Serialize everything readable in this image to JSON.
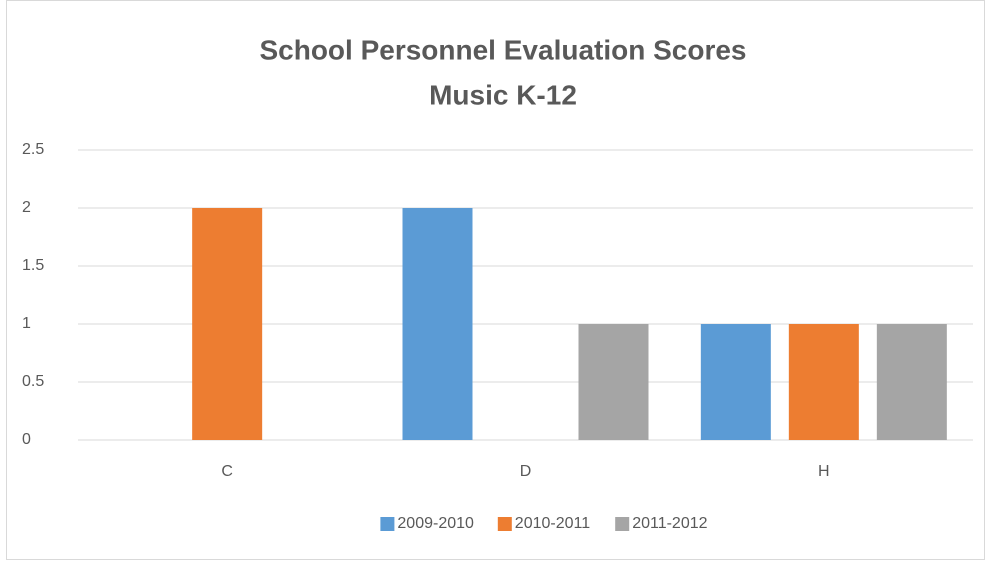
{
  "chart_data": {
    "type": "bar",
    "title": [
      "School Personnel Evaluation Scores",
      "Music K-12"
    ],
    "categories": [
      "C",
      "D",
      "H"
    ],
    "series": [
      {
        "name": "2009-2010",
        "color": "#5b9bd5",
        "values": [
          0,
          2,
          1
        ]
      },
      {
        "name": "2010-2011",
        "color": "#ed7d31",
        "values": [
          2,
          0,
          1
        ]
      },
      {
        "name": "2011-2012",
        "color": "#a5a5a5",
        "values": [
          0,
          1,
          1
        ]
      }
    ],
    "ylim": [
      0,
      2.5
    ],
    "yticks": [
      0,
      0.5,
      1,
      1.5,
      2,
      2.5
    ],
    "grid": true,
    "legend": "bottom"
  }
}
